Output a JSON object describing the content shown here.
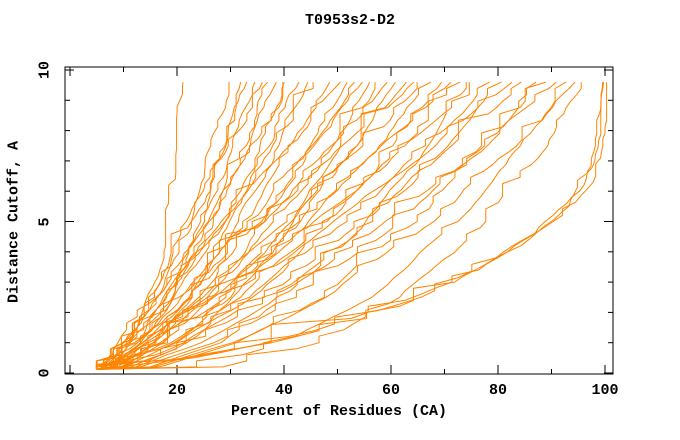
{
  "page": {
    "background": "#ffffff",
    "text_color": "#000000"
  },
  "chart": {
    "title": "T0953s2-D2",
    "x_axis": {
      "label": "Percent of Residues (CA)",
      "tick_labels": [
        "0",
        "20",
        "40",
        "60",
        "80",
        "100"
      ]
    },
    "y_axis": {
      "label": "Distance Cutoff, A",
      "tick_labels": [
        "0",
        "5",
        "10"
      ]
    }
  },
  "chart_data": {
    "type": "line",
    "title": "T0953s2-D2",
    "xlabel": "Percent of Residues (CA)",
    "ylabel": "Distance Cutoff, A",
    "xlim": [
      0,
      100
    ],
    "ylim": [
      0,
      10
    ],
    "x_major_ticks": [
      0,
      20,
      40,
      60,
      80,
      100
    ],
    "x_minor_ticks": [
      10,
      30,
      50,
      70,
      90
    ],
    "y_major_ticks": [
      0,
      5,
      10
    ],
    "y_minor_ticks": [
      1,
      2,
      3,
      4,
      6,
      7,
      8,
      9
    ],
    "grid": false,
    "legend": false,
    "line_color": "#FF8400",
    "axis_color": "#000000",
    "series": [
      [
        [
          5,
          0.12
        ],
        [
          8,
          0.3
        ],
        [
          12,
          1.2
        ],
        [
          15.5,
          2.8
        ],
        [
          17.5,
          4.2
        ],
        [
          19,
          6
        ],
        [
          20,
          8
        ],
        [
          21,
          9.6
        ]
      ],
      [
        [
          5,
          0.12
        ],
        [
          7.5,
          0.2
        ],
        [
          11.4,
          1
        ],
        [
          16.2,
          2.5
        ],
        [
          21.9,
          5
        ],
        [
          26.6,
          7.5
        ],
        [
          30,
          9.6
        ]
      ],
      [
        [
          5,
          0.12
        ],
        [
          8.9,
          0.2
        ],
        [
          13.7,
          1
        ],
        [
          18.8,
          2.5
        ],
        [
          24.5,
          5
        ],
        [
          28.9,
          7.5
        ],
        [
          32,
          9.6
        ]
      ],
      [
        [
          5,
          0.12
        ],
        [
          6.9,
          0.2
        ],
        [
          10.7,
          1
        ],
        [
          15.9,
          2.5
        ],
        [
          22.8,
          5
        ],
        [
          28.5,
          7.5
        ],
        [
          33,
          9.6
        ]
      ],
      [
        [
          5,
          0.12
        ],
        [
          7.9,
          0.2
        ],
        [
          12.6,
          1
        ],
        [
          18.2,
          2.5
        ],
        [
          24.9,
          5
        ],
        [
          30.5,
          7.5
        ],
        [
          34.5,
          9.6
        ]
      ],
      [
        [
          5,
          0.12
        ],
        [
          6.2,
          0.2
        ],
        [
          9.5,
          1
        ],
        [
          14.9,
          2.5
        ],
        [
          22.8,
          5
        ],
        [
          30.1,
          7.5
        ],
        [
          36,
          9.6
        ]
      ],
      [
        [
          5,
          0.12
        ],
        [
          8.1,
          0.2
        ],
        [
          13.2,
          1
        ],
        [
          19.3,
          2.5
        ],
        [
          26.6,
          5
        ],
        [
          32.6,
          7.5
        ],
        [
          37,
          9.6
        ]
      ],
      [
        [
          5,
          0.12
        ],
        [
          7.2,
          0.2
        ],
        [
          11.9,
          1
        ],
        [
          18.1,
          2.5
        ],
        [
          26.2,
          5
        ],
        [
          33.2,
          7.5
        ],
        [
          38.5,
          9.6
        ]
      ],
      [
        [
          5,
          0.12
        ],
        [
          10.0,
          0.2
        ],
        [
          16.3,
          1
        ],
        [
          22.9,
          2.5
        ],
        [
          30.3,
          5
        ],
        [
          35.9,
          7.5
        ],
        [
          40,
          9.6
        ]
      ],
      [
        [
          5,
          0.12
        ],
        [
          6.4,
          0.2
        ],
        [
          10.3,
          1
        ],
        [
          16.5,
          2.5
        ],
        [
          25.9,
          5
        ],
        [
          34.4,
          7.5
        ],
        [
          41.3,
          9.6
        ]
      ],
      [
        [
          5,
          0.12
        ],
        [
          7.5,
          0.2
        ],
        [
          12.7,
          1
        ],
        [
          19.7,
          2.5
        ],
        [
          29.0,
          5
        ],
        [
          36.8,
          7.5
        ],
        [
          42.8,
          9.6
        ]
      ],
      [
        [
          5,
          0.12
        ],
        [
          8.9,
          0.2
        ],
        [
          15.1,
          1
        ],
        [
          22.6,
          2.5
        ],
        [
          31.6,
          5
        ],
        [
          39.0,
          7.5
        ],
        [
          44.4,
          9.6
        ]
      ],
      [
        [
          5,
          0.12
        ],
        [
          6.5,
          0.2
        ],
        [
          11.0,
          1
        ],
        [
          18.1,
          2.5
        ],
        [
          28.7,
          5
        ],
        [
          38.4,
          7.5
        ],
        [
          46.2,
          9.6
        ]
      ],
      [
        [
          5,
          0.12
        ],
        [
          7.9,
          0.2
        ],
        [
          13.9,
          1
        ],
        [
          22.0,
          2.5
        ],
        [
          32.6,
          5
        ],
        [
          41.7,
          7.5
        ],
        [
          48.6,
          9.6
        ]
      ],
      [
        [
          5,
          0.12
        ],
        [
          5.9,
          0.2
        ],
        [
          9.7,
          1
        ],
        [
          16.8,
          2.5
        ],
        [
          28.7,
          5
        ],
        [
          40.5,
          7.5
        ],
        [
          50.5,
          9.6
        ]
      ],
      [
        [
          5,
          0.12
        ],
        [
          9.6,
          0.2
        ],
        [
          17.0,
          1
        ],
        [
          25.8,
          2.5
        ],
        [
          36.6,
          5
        ],
        [
          45.3,
          7.5
        ],
        [
          51.7,
          9.6
        ]
      ],
      [
        [
          5,
          0.12
        ],
        [
          8.2,
          0.2
        ],
        [
          14.9,
          1
        ],
        [
          23.8,
          2.5
        ],
        [
          35.6,
          5
        ],
        [
          45.5,
          7.5
        ],
        [
          53.2,
          9.6
        ]
      ],
      [
        [
          5,
          0.12
        ],
        [
          6.8,
          0.2
        ],
        [
          12.3,
          1
        ],
        [
          20.8,
          2.5
        ],
        [
          33.6,
          5
        ],
        [
          45.3,
          7.5
        ],
        [
          54.7,
          9.6
        ]
      ],
      [
        [
          5,
          0.12
        ],
        [
          12.3,
          0.2
        ],
        [
          21.5,
          1
        ],
        [
          31.0,
          2.5
        ],
        [
          41.8,
          5
        ],
        [
          50.1,
          7.5
        ],
        [
          56,
          9.6
        ]
      ],
      [
        [
          5,
          0.12
        ],
        [
          8.5,
          0.2
        ],
        [
          15.8,
          1
        ],
        [
          25.6,
          2.5
        ],
        [
          38.5,
          5
        ],
        [
          49.4,
          7.5
        ],
        [
          57.8,
          9.6
        ]
      ],
      [
        [
          5,
          0.12
        ],
        [
          7.0,
          0.2
        ],
        [
          12.9,
          1
        ],
        [
          22.3,
          2.5
        ],
        [
          36.2,
          5
        ],
        [
          49.0,
          7.5
        ],
        [
          59.3,
          9.6
        ]
      ],
      [
        [
          5,
          0.12
        ],
        [
          10.5,
          0.2
        ],
        [
          19.4,
          1
        ],
        [
          29.9,
          2.5
        ],
        [
          42.8,
          5
        ],
        [
          53.2,
          7.5
        ],
        [
          60.9,
          9.6
        ]
      ],
      [
        [
          5,
          0.12
        ],
        [
          8.8,
          0.2
        ],
        [
          16.9,
          1
        ],
        [
          27.5,
          2.5
        ],
        [
          41.6,
          5
        ],
        [
          53.6,
          7.5
        ],
        [
          62.8,
          9.6
        ]
      ],
      [
        [
          5,
          0.12
        ],
        [
          6.2,
          0.2
        ],
        [
          11.2,
          1
        ],
        [
          20.4,
          2.5
        ],
        [
          35.8,
          5
        ],
        [
          51.2,
          7.5
        ],
        [
          64.2,
          9.6
        ]
      ],
      [
        [
          5,
          0.12
        ],
        [
          7.3,
          0.2
        ],
        [
          13.9,
          1
        ],
        [
          24.4,
          2.5
        ],
        [
          40.1,
          5
        ],
        [
          54.6,
          7.5
        ],
        [
          66.1,
          9.6
        ]
      ],
      [
        [
          5,
          0.12
        ],
        [
          9.2,
          0.2
        ],
        [
          17.8,
          1
        ],
        [
          29.4,
          2.5
        ],
        [
          44.6,
          5
        ],
        [
          57.6,
          7.5
        ],
        [
          67.5,
          9.6
        ]
      ],
      [
        [
          5,
          0.12
        ],
        [
          11.3,
          0.2
        ],
        [
          21.6,
          1
        ],
        [
          33.7,
          2.5
        ],
        [
          48.5,
          5
        ],
        [
          60.6,
          7.5
        ],
        [
          69.4,
          9.6
        ]
      ],
      [
        [
          5,
          0.12
        ],
        [
          7.5,
          0.2
        ],
        [
          14.7,
          1
        ],
        [
          26.1,
          2.5
        ],
        [
          43.1,
          5
        ],
        [
          58.7,
          7.5
        ],
        [
          71.2,
          9.6
        ]
      ],
      [
        [
          5,
          0.12
        ],
        [
          9.5,
          0.2
        ],
        [
          18.9,
          1
        ],
        [
          31.5,
          2.5
        ],
        [
          48.1,
          5
        ],
        [
          62.2,
          7.5
        ],
        [
          73,
          9.6
        ]
      ],
      [
        [
          5,
          0.12
        ],
        [
          15.1,
          0.2
        ],
        [
          27.6,
          1
        ],
        [
          40.6,
          2.5
        ],
        [
          55.5,
          5
        ],
        [
          66.8,
          7.5
        ],
        [
          74.9,
          9.6
        ]
      ],
      [
        [
          5,
          0.12
        ],
        [
          7.7,
          0.2
        ],
        [
          15.5,
          1
        ],
        [
          27.8,
          2.5
        ],
        [
          46.2,
          5
        ],
        [
          63.1,
          7.5
        ],
        [
          76.7,
          9.6
        ]
      ],
      [
        [
          5,
          0.12
        ],
        [
          9.9,
          0.2
        ],
        [
          20.1,
          1
        ],
        [
          33.7,
          2.5
        ],
        [
          51.6,
          5
        ],
        [
          66.8,
          7.5
        ],
        [
          78.5,
          9.6
        ]
      ],
      [
        [
          5,
          0.12
        ],
        [
          12.4,
          0.2
        ],
        [
          24.5,
          1
        ],
        [
          38.8,
          2.5
        ],
        [
          56.2,
          5
        ],
        [
          70.3,
          7.5
        ],
        [
          80.7,
          9.6
        ]
      ],
      [
        [
          5,
          0.12
        ],
        [
          7.9,
          0.2
        ],
        [
          16.3,
          1
        ],
        [
          29.7,
          2.5
        ],
        [
          49.6,
          5
        ],
        [
          67.9,
          7.5
        ],
        [
          82.6,
          9.6
        ]
      ],
      [
        [
          5,
          0.12
        ],
        [
          10.3,
          0.2
        ],
        [
          21.3,
          1
        ],
        [
          36.0,
          2.5
        ],
        [
          55.3,
          5
        ],
        [
          71.8,
          7.5
        ],
        [
          84.4,
          9.6
        ]
      ],
      [
        [
          5,
          0.12
        ],
        [
          16.8,
          0.2
        ],
        [
          31.6,
          1
        ],
        [
          46.9,
          2.5
        ],
        [
          64.3,
          5
        ],
        [
          77.7,
          7.5
        ],
        [
          87.2,
          9.6
        ]
      ],
      [
        [
          5,
          0.12
        ],
        [
          13.2,
          0.2
        ],
        [
          26.6,
          1
        ],
        [
          42.5,
          2.5
        ],
        [
          61.8,
          5
        ],
        [
          77.5,
          7.5
        ],
        [
          89,
          9.6
        ]
      ],
      [
        [
          5,
          0.12
        ],
        [
          10.7,
          0.2
        ],
        [
          22.6,
          1
        ],
        [
          38.5,
          2.5
        ],
        [
          59.4,
          5
        ],
        [
          77.2,
          7.5
        ],
        [
          90.8,
          9.6
        ]
      ],
      [
        [
          5,
          0.12
        ],
        [
          23.6,
          0.2
        ],
        [
          40.5,
          1
        ],
        [
          56.2,
          2.5
        ],
        [
          72.5,
          5
        ],
        [
          84.5,
          7.5
        ],
        [
          92.7,
          9.6
        ]
      ],
      [
        [
          5,
          0.12
        ],
        [
          15.7,
          0.2
        ],
        [
          30.8,
          1
        ],
        [
          47.7,
          2.5
        ],
        [
          67.5,
          5
        ],
        [
          83.1,
          7.5
        ],
        [
          94.5,
          9.6
        ]
      ],
      [
        [
          5,
          0.12
        ],
        [
          28.6,
          0.2
        ],
        [
          46.4,
          1
        ],
        [
          62.0,
          2.5
        ],
        [
          77.7,
          5
        ],
        [
          88.7,
          7.5
        ],
        [
          96.3,
          9.6
        ]
      ],
      [
        [
          5,
          0.12
        ],
        [
          23,
          0.5
        ],
        [
          42,
          1.2
        ],
        [
          60,
          2.2
        ],
        [
          74,
          3.2
        ],
        [
          87,
          4.6
        ],
        [
          95,
          6
        ],
        [
          98.5,
          7.5
        ],
        [
          99.5,
          9.6
        ]
      ],
      [
        [
          5,
          0.12
        ],
        [
          26,
          0.6
        ],
        [
          46,
          1.4
        ],
        [
          65,
          2.5
        ],
        [
          80,
          3.8
        ],
        [
          92,
          5.2
        ],
        [
          98.5,
          6.5
        ],
        [
          100,
          7.5
        ],
        [
          100,
          9.6
        ]
      ],
      [
        [
          5,
          0.12
        ],
        [
          20,
          0.45
        ],
        [
          38,
          1.0
        ],
        [
          55,
          1.8
        ],
        [
          70,
          2.8
        ],
        [
          84,
          4.2
        ],
        [
          93,
          5.5
        ],
        [
          98,
          6.8
        ],
        [
          99.8,
          9.6
        ]
      ]
    ]
  }
}
